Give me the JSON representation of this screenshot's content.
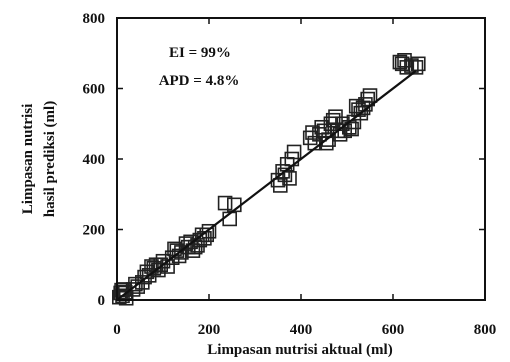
{
  "chart_data": {
    "type": "scatter",
    "xlabel": "Limpasan nutrisi aktual (ml)",
    "ylabel_lines": [
      "Limpasan nutrisi",
      "hasil prediksi (ml)"
    ],
    "xlim": [
      0,
      800
    ],
    "ylim": [
      0,
      800
    ],
    "x_ticks": [
      0,
      200,
      400,
      600,
      800
    ],
    "y_ticks": [
      0,
      200,
      400,
      600,
      800
    ],
    "annotations": [
      "EI = 99%",
      "APD = 4.8%"
    ],
    "marker": "open-square",
    "fit_line": {
      "x": [
        0,
        650
      ],
      "y": [
        0,
        650
      ]
    },
    "points": [
      [
        5,
        8
      ],
      [
        8,
        20
      ],
      [
        10,
        28
      ],
      [
        12,
        12
      ],
      [
        15,
        30
      ],
      [
        18,
        22
      ],
      [
        20,
        5
      ],
      [
        35,
        30
      ],
      [
        40,
        45
      ],
      [
        45,
        38
      ],
      [
        55,
        50
      ],
      [
        60,
        65
      ],
      [
        65,
        80
      ],
      [
        70,
        70
      ],
      [
        75,
        95
      ],
      [
        80,
        90
      ],
      [
        85,
        100
      ],
      [
        90,
        85
      ],
      [
        95,
        100
      ],
      [
        100,
        110
      ],
      [
        110,
        95
      ],
      [
        120,
        120
      ],
      [
        125,
        145
      ],
      [
        130,
        140
      ],
      [
        135,
        125
      ],
      [
        140,
        135
      ],
      [
        150,
        160
      ],
      [
        155,
        150
      ],
      [
        160,
        165
      ],
      [
        165,
        140
      ],
      [
        170,
        150
      ],
      [
        175,
        155
      ],
      [
        180,
        170
      ],
      [
        185,
        185
      ],
      [
        190,
        175
      ],
      [
        195,
        185
      ],
      [
        200,
        195
      ],
      [
        235,
        275
      ],
      [
        245,
        230
      ],
      [
        255,
        270
      ],
      [
        350,
        340
      ],
      [
        355,
        325
      ],
      [
        360,
        365
      ],
      [
        365,
        355
      ],
      [
        370,
        385
      ],
      [
        375,
        345
      ],
      [
        380,
        400
      ],
      [
        385,
        420
      ],
      [
        420,
        460
      ],
      [
        425,
        475
      ],
      [
        430,
        445
      ],
      [
        440,
        470
      ],
      [
        445,
        490
      ],
      [
        450,
        480
      ],
      [
        455,
        445
      ],
      [
        460,
        455
      ],
      [
        465,
        500
      ],
      [
        470,
        510
      ],
      [
        475,
        520
      ],
      [
        480,
        480
      ],
      [
        485,
        470
      ],
      [
        490,
        500
      ],
      [
        495,
        480
      ],
      [
        505,
        490
      ],
      [
        510,
        485
      ],
      [
        515,
        505
      ],
      [
        520,
        550
      ],
      [
        525,
        540
      ],
      [
        530,
        530
      ],
      [
        535,
        545
      ],
      [
        540,
        555
      ],
      [
        545,
        570
      ],
      [
        550,
        580
      ],
      [
        615,
        675
      ],
      [
        620,
        670
      ],
      [
        625,
        680
      ],
      [
        630,
        660
      ],
      [
        640,
        665
      ],
      [
        650,
        660
      ],
      [
        655,
        670
      ]
    ]
  }
}
